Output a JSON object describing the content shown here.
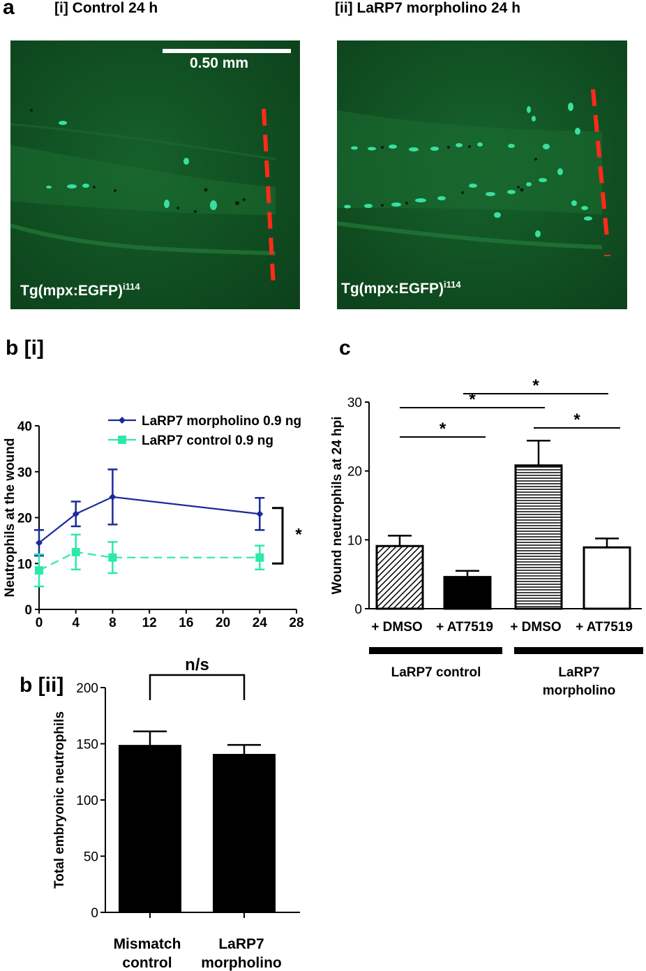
{
  "panel_a": {
    "label": "a",
    "left": {
      "title": "[i] Control  24 h",
      "scale_bar_label": "0.50 mm",
      "caption": "Tg(mpx:EGFP)",
      "caption_sup": "i114"
    },
    "right": {
      "title": "[ii] LaRP7 morpholino  24 h",
      "caption": "Tg(mpx:EGFP)",
      "caption_sup": "i114"
    },
    "colors": {
      "background": "#0f4a1f",
      "cells": "#38e0a0",
      "wound_line": "#ff2a1a"
    }
  },
  "panel_bi_label": "b [i]",
  "panel_bii_label": "b [ii]",
  "panel_c_label": "c",
  "chart_data": [
    {
      "id": "b-i",
      "type": "line",
      "title": "",
      "xlabel": "",
      "ylabel": "Neutrophils at the wound",
      "xlim": [
        0,
        28
      ],
      "ylim": [
        0,
        40
      ],
      "xticks": [
        0,
        4,
        8,
        12,
        16,
        20,
        24,
        28
      ],
      "yticks": [
        0,
        10,
        20,
        30,
        40
      ],
      "legend_position": "top-right",
      "significance": "*",
      "series": [
        {
          "name": "LaRP7 morpholino 0.9 ng",
          "color": "#1a2a9a",
          "marker": "diamond",
          "x": [
            0,
            4,
            8,
            24
          ],
          "y": [
            14.5,
            20.8,
            24.5,
            20.8
          ],
          "err": [
            2.8,
            2.7,
            6.0,
            3.5
          ]
        },
        {
          "name": "LaRP7 control 0.9 ng",
          "color": "#2ee8a8",
          "marker": "square",
          "x": [
            0,
            4,
            8,
            24
          ],
          "y": [
            8.5,
            12.5,
            11.3,
            11.3
          ],
          "err": [
            3.5,
            3.8,
            3.4,
            2.6
          ]
        }
      ]
    },
    {
      "id": "b-ii",
      "type": "bar",
      "title": "",
      "ylabel": "Total embryonic neutrophils",
      "ylim": [
        0,
        200
      ],
      "yticks": [
        0,
        50,
        100,
        150,
        200
      ],
      "categories": [
        "Mismatch control",
        "LaRP7 morpholino"
      ],
      "category_lines": [
        [
          "Mismatch",
          "control"
        ],
        [
          "LaRP7",
          "morpholino"
        ]
      ],
      "values": [
        149,
        141
      ],
      "err": [
        12,
        8
      ],
      "significance": "n/s"
    },
    {
      "id": "c",
      "type": "bar",
      "title": "",
      "ylabel": "Wound neutrophils at 24 hpi",
      "ylim": [
        0,
        30
      ],
      "yticks": [
        0,
        10,
        20,
        30
      ],
      "categories": [
        "+ DMSO",
        "+ AT7519",
        "+ DMSO",
        "+ AT7519"
      ],
      "values": [
        9.1,
        4.6,
        20.8,
        8.9
      ],
      "err": [
        1.5,
        0.9,
        3.6,
        1.3
      ],
      "fills": [
        "diagonal-hatch",
        "solid-black",
        "horizontal-hatch",
        "white"
      ],
      "groups": [
        {
          "label_lines": [
            "LaRP7 control"
          ]
        },
        {
          "label_lines": [
            "LaRP7",
            "morpholino"
          ]
        }
      ],
      "significance": [
        "*",
        "*",
        "*",
        "*"
      ]
    }
  ]
}
